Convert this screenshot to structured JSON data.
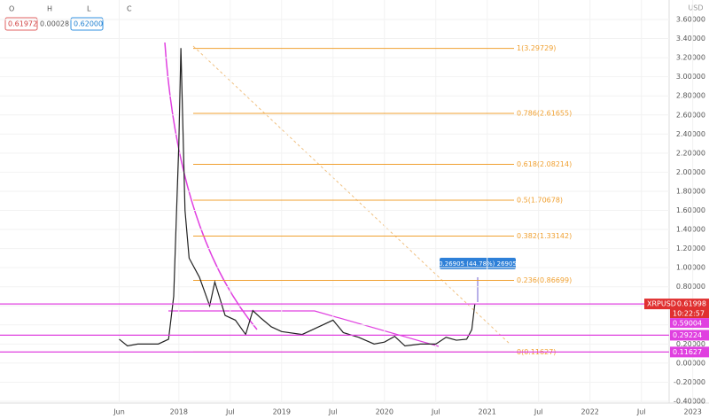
{
  "toolbar": {
    "o_label": "O",
    "h_label": "H",
    "l_label": "L",
    "c_label": "C",
    "boxes": [
      "0.61972",
      "0.00028",
      "0.62000"
    ]
  },
  "chart_data": {
    "type": "line",
    "currency": "USD",
    "color": "#222222",
    "x": [
      2017.42,
      2017.5,
      2017.6,
      2017.7,
      2017.8,
      2017.9,
      2017.95,
      2018.0,
      2018.02,
      2018.06,
      2018.1,
      2018.2,
      2018.3,
      2018.35,
      2018.45,
      2018.55,
      2018.65,
      2018.72,
      2018.8,
      2018.9,
      2019.0,
      2019.2,
      2019.4,
      2019.5,
      2019.6,
      2019.75,
      2019.9,
      2020.0,
      2020.1,
      2020.2,
      2020.35,
      2020.5,
      2020.6,
      2020.7,
      2020.8,
      2020.85,
      2020.88
    ],
    "values": [
      0.25,
      0.18,
      0.2,
      0.2,
      0.2,
      0.25,
      0.7,
      2.3,
      3.3,
      1.6,
      1.1,
      0.9,
      0.6,
      0.85,
      0.5,
      0.45,
      0.3,
      0.55,
      0.47,
      0.38,
      0.33,
      0.3,
      0.4,
      0.45,
      0.32,
      0.27,
      0.2,
      0.22,
      0.28,
      0.18,
      0.2,
      0.2,
      0.27,
      0.24,
      0.25,
      0.35,
      0.62
    ],
    "xlim": [
      2016.26,
      2022.77
    ],
    "xticks": [
      {
        "value": 2017.42,
        "label": "Jun"
      },
      {
        "value": 2018,
        "label": "2018"
      },
      {
        "value": 2018.5,
        "label": "Jul"
      },
      {
        "value": 2019,
        "label": "2019"
      },
      {
        "value": 2019.5,
        "label": "Jul"
      },
      {
        "value": 2020,
        "label": "2020"
      },
      {
        "value": 2020.5,
        "label": "Jul"
      },
      {
        "value": 2021,
        "label": "2021"
      },
      {
        "value": 2021.5,
        "label": "Jul"
      },
      {
        "value": 2022,
        "label": "2022"
      },
      {
        "value": 2022.5,
        "label": "Jul"
      },
      {
        "value": 2023,
        "label": "2023"
      }
    ],
    "ylim": [
      -0.4,
      3.6
    ],
    "yticks": [
      {
        "value": 3.6,
        "label": "3.60000"
      },
      {
        "value": 3.4,
        "label": "3.40000"
      },
      {
        "value": 3.2,
        "label": "3.20000"
      },
      {
        "value": 3.0,
        "label": "3.00000"
      },
      {
        "value": 2.8,
        "label": "2.80000"
      },
      {
        "value": 2.6,
        "label": "2.60000"
      },
      {
        "value": 2.4,
        "label": "2.40000"
      },
      {
        "value": 2.2,
        "label": "2.20000"
      },
      {
        "value": 2.0,
        "label": "2.00000"
      },
      {
        "value": 1.8,
        "label": "1.80000"
      },
      {
        "value": 1.6,
        "label": "1.60000"
      },
      {
        "value": 1.4,
        "label": "1.40000"
      },
      {
        "value": 1.2,
        "label": "1.20000"
      },
      {
        "value": 1.0,
        "label": "1.00000"
      },
      {
        "value": 0.8,
        "label": "0.80000"
      },
      {
        "value": 0.6,
        "label": "0.60000"
      },
      {
        "value": 0.4,
        "label": "0.40000"
      },
      {
        "value": 0.2,
        "label": "0.20000"
      },
      {
        "value": 0,
        "label": "0.00000"
      },
      {
        "value": -0.2,
        "label": "-0.20000"
      },
      {
        "value": -0.4,
        "label": "-0.40000"
      }
    ],
    "grid": true,
    "fib_levels": [
      {
        "label": "1(3.29729)",
        "value": 3.29729
      },
      {
        "label": "0.786(2.61655)",
        "value": 2.61655
      },
      {
        "label": "0.618(2.08214)",
        "value": 2.08214
      },
      {
        "label": "0.5(1.70678)",
        "value": 1.70678
      },
      {
        "label": "0.382(1.33142)",
        "value": 1.33142
      },
      {
        "label": "0.236(0.86699)",
        "value": 0.86699
      },
      {
        "label": "0(0.11627)",
        "value": 0.11627
      }
    ],
    "fib_color": "#f0a030",
    "horizontal_lines": [
      0.61998,
      0.29224,
      0.11627
    ],
    "line_color": "#e040e0",
    "symbol": "XRPUSD",
    "countdown": "10:22:57",
    "extra_price": 0.59004,
    "measure_label": "0.26905 (44.78%) 26905"
  }
}
